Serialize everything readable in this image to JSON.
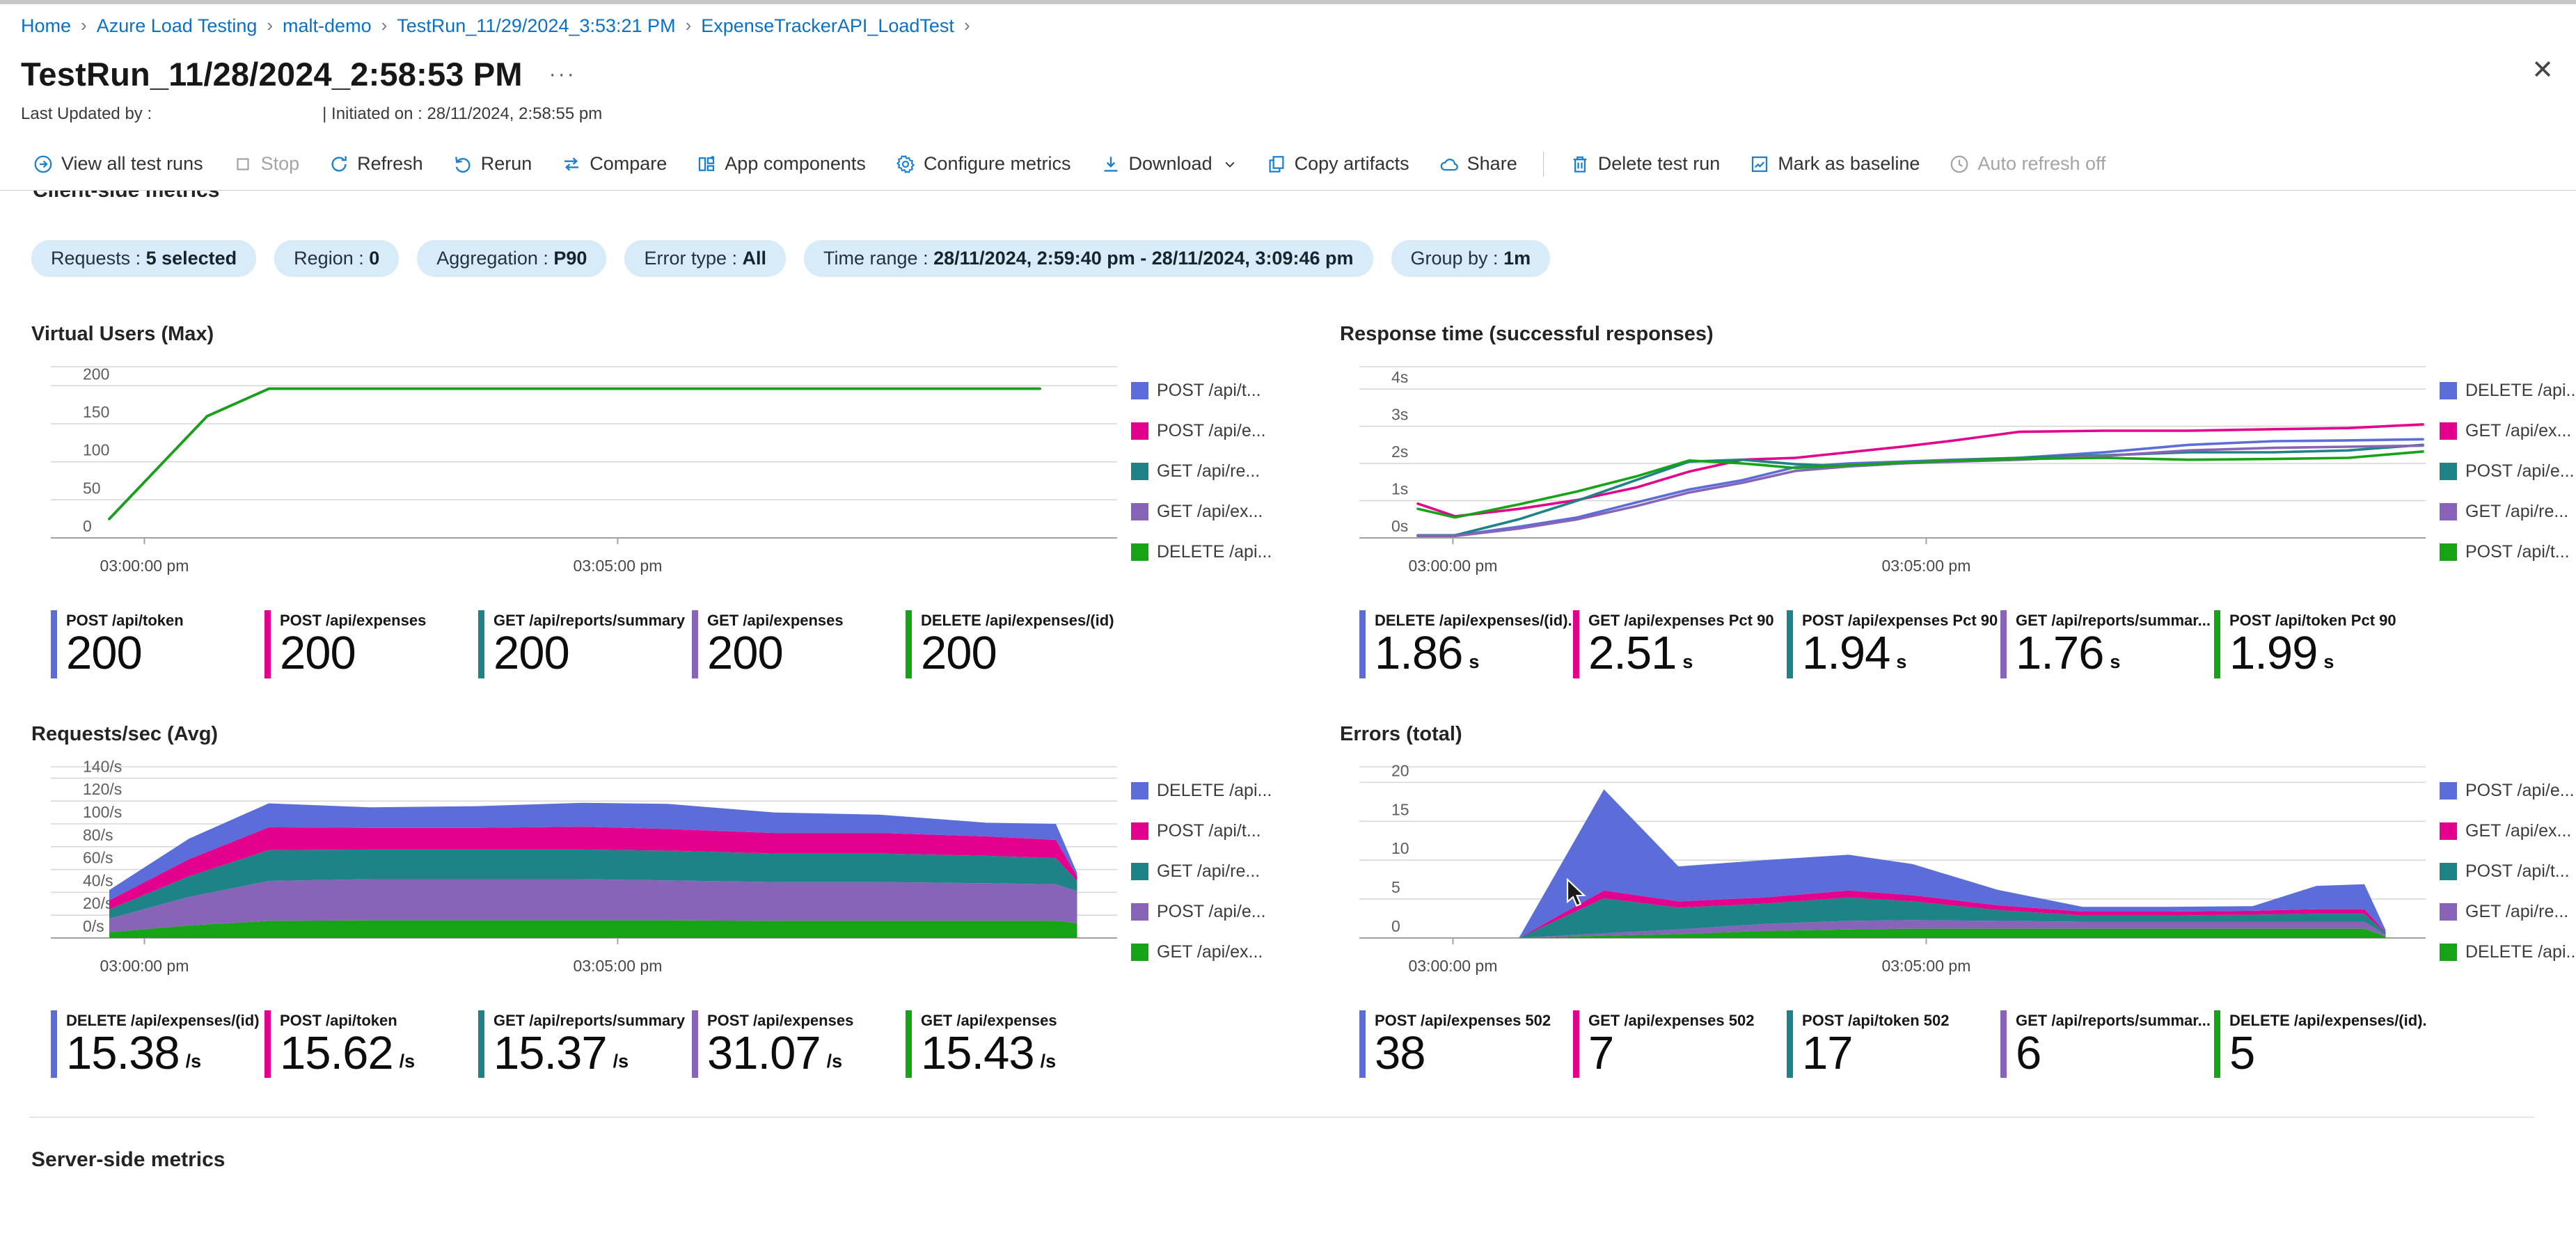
{
  "breadcrumb": {
    "items": [
      "Home",
      "Azure Load Testing",
      "malt-demo",
      "TestRun_11/29/2024_3:53:21 PM",
      "ExpenseTrackerAPI_LoadTest"
    ],
    "separator": "›"
  },
  "header": {
    "title": "TestRun_11/28/2024_2:58:53 PM",
    "more": "···",
    "close": "✕",
    "last_updated": "Last Updated by :",
    "initiated": "| Initiated on : 28/11/2024, 2:58:55 pm"
  },
  "toolbar": {
    "items": [
      {
        "label": "View all test runs"
      },
      {
        "label": "Stop"
      },
      {
        "label": "Refresh"
      },
      {
        "label": "Rerun"
      },
      {
        "label": "Compare"
      },
      {
        "label": "App components"
      },
      {
        "label": "Configure metrics"
      },
      {
        "label": "Download"
      },
      {
        "label": "Copy artifacts"
      },
      {
        "label": "Share"
      },
      {
        "label": "Delete test run"
      },
      {
        "label": "Mark as baseline"
      },
      {
        "label": "Auto refresh off"
      }
    ]
  },
  "sections": {
    "client_heading": "Client-side metrics",
    "server_heading": "Server-side metrics"
  },
  "filters": [
    {
      "label": "Requests",
      "value": "5 selected"
    },
    {
      "label": "Region",
      "value": "0"
    },
    {
      "label": "Aggregation",
      "value": "P90"
    },
    {
      "label": "Error type",
      "value": "All"
    },
    {
      "label": "Time range",
      "value": "28/11/2024, 2:59:40 pm - 28/11/2024, 3:09:46 pm"
    },
    {
      "label": "Group by",
      "value": "1m"
    }
  ],
  "colors": {
    "blue": "#5B6DD9",
    "pink": "#E3008C",
    "teal": "#1E8387",
    "purple": "#8764B8",
    "green": "#16A316",
    "link": "#0B71C6",
    "pill_bg": "#D7EBF9"
  },
  "chart_data": {
    "note": "see charts array",
    "charts_count": 4
  },
  "charts": [
    {
      "title": "Virtual Users (Max)",
      "type": "line",
      "ymax": 225,
      "yticks": [
        {
          "v": 0,
          "label": "0"
        },
        {
          "v": 50,
          "label": "50"
        },
        {
          "v": 100,
          "label": "100"
        },
        {
          "v": 150,
          "label": "150"
        },
        {
          "v": 200,
          "label": "200"
        }
      ],
      "xticks": [
        {
          "f": 0.088,
          "label": "03:00:00 pm"
        },
        {
          "f": 0.533,
          "label": "03:05:00 pm"
        }
      ],
      "series": [
        {
          "name": "POST /api/token",
          "color": "#5B6DD9",
          "points": [
            [
              0.055,
              25
            ],
            [
              0.147,
              160
            ],
            [
              0.205,
              196
            ],
            [
              0.93,
              196
            ]
          ]
        },
        {
          "name": "POST /api/expenses",
          "color": "#E3008C",
          "points": [
            [
              0.055,
              25
            ],
            [
              0.147,
              160
            ],
            [
              0.205,
              196
            ],
            [
              0.93,
              196
            ]
          ]
        },
        {
          "name": "GET /api/reports/summary",
          "color": "#1E8387",
          "points": [
            [
              0.055,
              25
            ],
            [
              0.147,
              160
            ],
            [
              0.205,
              196
            ],
            [
              0.93,
              196
            ]
          ]
        },
        {
          "name": "GET /api/expenses",
          "color": "#8764B8",
          "points": [
            [
              0.055,
              25
            ],
            [
              0.147,
              160
            ],
            [
              0.205,
              196
            ],
            [
              0.93,
              196
            ]
          ]
        },
        {
          "name": "DELETE /api/expenses/(id)",
          "color": "#16A316",
          "points": [
            [
              0.055,
              25
            ],
            [
              0.147,
              160
            ],
            [
              0.205,
              196
            ],
            [
              0.93,
              196
            ]
          ]
        }
      ],
      "legend": [
        {
          "label": "POST /api/t...",
          "color": "#5B6DD9"
        },
        {
          "label": "POST /api/e...",
          "color": "#E3008C"
        },
        {
          "label": "GET /api/re...",
          "color": "#1E8387"
        },
        {
          "label": "GET /api/ex...",
          "color": "#8764B8"
        },
        {
          "label": "DELETE /api...",
          "color": "#16A316"
        }
      ],
      "stats": [
        {
          "label": "POST /api/token",
          "value": "200",
          "unit": "",
          "color": "#5B6DD9"
        },
        {
          "label": "POST /api/expenses",
          "value": "200",
          "unit": "",
          "color": "#E3008C"
        },
        {
          "label": "GET /api/reports/summary",
          "value": "200",
          "unit": "",
          "color": "#1E8387"
        },
        {
          "label": "GET /api/expenses",
          "value": "200",
          "unit": "",
          "color": "#8764B8"
        },
        {
          "label": "DELETE /api/expenses/(id)",
          "value": "200",
          "unit": "",
          "color": "#16A316"
        }
      ]
    },
    {
      "title": "Response time (successful responses)",
      "type": "line",
      "ymax": 4.6,
      "yticks": [
        {
          "v": 0,
          "label": "0s"
        },
        {
          "v": 1,
          "label": "1s"
        },
        {
          "v": 2,
          "label": "2s"
        },
        {
          "v": 3,
          "label": "3s"
        },
        {
          "v": 4,
          "label": "4s"
        }
      ],
      "xticks": [
        {
          "f": 0.088,
          "label": "03:00:00 pm"
        },
        {
          "f": 0.533,
          "label": "03:05:00 pm"
        }
      ],
      "shared_x": [
        0.055,
        0.09,
        0.15,
        0.205,
        0.26,
        0.31,
        0.36,
        0.41,
        0.46,
        0.51,
        0.56,
        0.62,
        0.7,
        0.78,
        0.86,
        0.93,
        1.0
      ],
      "series": [
        {
          "name": "DELETE /api/expenses/(id)",
          "color": "#5B6DD9",
          "values": [
            0.06,
            0.06,
            0.3,
            0.55,
            0.95,
            1.3,
            1.55,
            1.9,
            2.0,
            2.05,
            2.1,
            2.15,
            2.3,
            2.5,
            2.6,
            2.62,
            2.65
          ]
        },
        {
          "name": "GET /api/expenses Pct 90",
          "color": "#E3008C",
          "values": [
            0.92,
            0.58,
            0.78,
            1.02,
            1.35,
            1.78,
            2.1,
            2.15,
            2.3,
            2.45,
            2.62,
            2.85,
            2.88,
            2.88,
            2.92,
            2.95,
            3.05
          ]
        },
        {
          "name": "POST /api/expenses Pct 90",
          "color": "#1E8387",
          "values": [
            0.07,
            0.07,
            0.5,
            1.0,
            1.55,
            2.05,
            2.1,
            1.98,
            1.92,
            2.0,
            2.08,
            2.15,
            2.22,
            2.3,
            2.3,
            2.35,
            2.5
          ]
        },
        {
          "name": "GET /api/reports/summary Pct 90",
          "color": "#8764B8",
          "values": [
            0.05,
            0.05,
            0.25,
            0.5,
            0.85,
            1.22,
            1.48,
            1.8,
            1.92,
            2.0,
            2.05,
            2.1,
            2.2,
            2.35,
            2.42,
            2.45,
            2.48
          ]
        },
        {
          "name": "POST /api/token Pct 90",
          "color": "#16A316",
          "values": [
            0.78,
            0.55,
            0.9,
            1.25,
            1.65,
            2.08,
            2.0,
            1.88,
            1.95,
            2.02,
            2.08,
            2.12,
            2.15,
            2.1,
            2.12,
            2.15,
            2.32
          ]
        }
      ],
      "legend": [
        {
          "label": "DELETE /api...",
          "color": "#5B6DD9"
        },
        {
          "label": "GET /api/ex...",
          "color": "#E3008C"
        },
        {
          "label": "POST /api/e...",
          "color": "#1E8387"
        },
        {
          "label": "GET /api/re...",
          "color": "#8764B8"
        },
        {
          "label": "POST /api/t...",
          "color": "#16A316"
        }
      ],
      "stats": [
        {
          "label": "DELETE /api/expenses/(id)...",
          "value": "1.86",
          "unit": "s",
          "color": "#5B6DD9"
        },
        {
          "label": "GET /api/expenses Pct 90",
          "value": "2.51",
          "unit": "s",
          "color": "#E3008C"
        },
        {
          "label": "POST /api/expenses Pct 90",
          "value": "1.94",
          "unit": "s",
          "color": "#1E8387"
        },
        {
          "label": "GET /api/reports/summar...",
          "value": "1.76",
          "unit": "s",
          "color": "#8764B8"
        },
        {
          "label": "POST /api/token Pct 90",
          "value": "1.99",
          "unit": "s",
          "color": "#16A316"
        }
      ]
    },
    {
      "title": "Requests/sec (Avg)",
      "type": "area",
      "ymax": 150,
      "yticks": [
        {
          "v": 0,
          "label": "0/s"
        },
        {
          "v": 20,
          "label": "20/s"
        },
        {
          "v": 40,
          "label": "40/s"
        },
        {
          "v": 60,
          "label": "60/s"
        },
        {
          "v": 80,
          "label": "80/s"
        },
        {
          "v": 100,
          "label": "100/s"
        },
        {
          "v": 120,
          "label": "120/s"
        },
        {
          "v": 140,
          "label": "140/s"
        }
      ],
      "xticks": [
        {
          "f": 0.088,
          "label": "03:00:00 pm"
        },
        {
          "f": 0.533,
          "label": "03:05:00 pm"
        }
      ],
      "x": [
        0.055,
        0.13,
        0.205,
        0.3,
        0.4,
        0.5,
        0.58,
        0.68,
        0.78,
        0.88,
        0.945,
        0.965
      ],
      "series": [
        {
          "name": "GET /api/expenses",
          "color": "#16A316",
          "values": [
            5,
            11,
            15,
            15.5,
            15.5,
            15.5,
            15.5,
            15,
            15,
            15,
            15,
            13
          ]
        },
        {
          "name": "POST /api/expenses",
          "color": "#8764B8",
          "values": [
            12,
            25,
            35,
            36,
            36,
            36,
            35,
            34,
            34,
            33,
            32,
            28
          ]
        },
        {
          "name": "GET /api/reports/summary",
          "color": "#1E8387",
          "values": [
            8,
            18,
            27,
            26,
            26,
            26,
            26,
            25,
            25,
            24,
            23,
            9
          ]
        },
        {
          "name": "POST /api/token",
          "color": "#E3008C",
          "values": [
            8,
            15,
            20,
            19,
            19,
            20,
            19,
            18,
            18,
            17,
            16,
            4
          ]
        },
        {
          "name": "DELETE /api/expenses/(id)",
          "color": "#5B6DD9",
          "values": [
            9,
            18,
            21,
            18,
            19,
            21,
            22,
            18,
            16,
            12,
            14,
            3
          ]
        }
      ],
      "legend": [
        {
          "label": "DELETE /api...",
          "color": "#5B6DD9"
        },
        {
          "label": "POST /api/t...",
          "color": "#E3008C"
        },
        {
          "label": "GET /api/re...",
          "color": "#1E8387"
        },
        {
          "label": "POST /api/e...",
          "color": "#8764B8"
        },
        {
          "label": "GET /api/ex...",
          "color": "#16A316"
        }
      ],
      "stats": [
        {
          "label": "DELETE /api/expenses/(id)",
          "value": "15.38",
          "unit": "/s",
          "color": "#5B6DD9"
        },
        {
          "label": "POST /api/token",
          "value": "15.62",
          "unit": "/s",
          "color": "#E3008C"
        },
        {
          "label": "GET /api/reports/summary",
          "value": "15.37",
          "unit": "/s",
          "color": "#1E8387"
        },
        {
          "label": "POST /api/expenses",
          "value": "31.07",
          "unit": "/s",
          "color": "#8764B8"
        },
        {
          "label": "GET /api/expenses",
          "value": "15.43",
          "unit": "/s",
          "color": "#16A316"
        }
      ]
    },
    {
      "title": "Errors (total)",
      "type": "area",
      "ymax": 22,
      "yticks": [
        {
          "v": 0,
          "label": "0"
        },
        {
          "v": 5,
          "label": "5"
        },
        {
          "v": 10,
          "label": "10"
        },
        {
          "v": 15,
          "label": "15"
        },
        {
          "v": 20,
          "label": "20"
        }
      ],
      "xticks": [
        {
          "f": 0.088,
          "label": "03:00:00 pm"
        },
        {
          "f": 0.533,
          "label": "03:05:00 pm"
        }
      ],
      "x": [
        0.15,
        0.23,
        0.3,
        0.38,
        0.46,
        0.52,
        0.6,
        0.68,
        0.76,
        0.84,
        0.9,
        0.945,
        0.965
      ],
      "series": [
        {
          "name": "DELETE /api/expenses/(id) 502",
          "color": "#16A316",
          "values": [
            0,
            0.3,
            0.5,
            0.9,
            1.1,
            1.2,
            1.2,
            1.2,
            1.2,
            1.2,
            1.2,
            1.2,
            0.2
          ]
        },
        {
          "name": "GET /api/reports/summary 502",
          "color": "#8764B8",
          "values": [
            0,
            0.3,
            0.6,
            0.9,
            1.1,
            1.1,
            1.0,
            0.9,
            0.9,
            0.9,
            0.9,
            0.9,
            0.2
          ]
        },
        {
          "name": "POST /api/token 502",
          "color": "#1E8387",
          "values": [
            0,
            4.5,
            2.8,
            2.6,
            3.0,
            2.4,
            1.4,
            0.8,
            0.8,
            0.9,
            1.0,
            1.0,
            0.2
          ]
        },
        {
          "name": "GET /api/expenses 502",
          "color": "#E3008C",
          "values": [
            0,
            1.0,
            0.8,
            0.8,
            0.9,
            0.8,
            0.6,
            0.5,
            0.5,
            0.5,
            0.6,
            0.6,
            0.1
          ]
        },
        {
          "name": "POST /api/expenses 502",
          "color": "#5B6DD9",
          "values": [
            0,
            13.0,
            4.5,
            4.8,
            4.6,
            4.0,
            2.0,
            0.6,
            0.6,
            0.6,
            3.0,
            3.2,
            0.3
          ]
        }
      ],
      "legend": [
        {
          "label": "POST /api/e...",
          "color": "#5B6DD9"
        },
        {
          "label": "GET /api/ex...",
          "color": "#E3008C"
        },
        {
          "label": "POST /api/t...",
          "color": "#1E8387"
        },
        {
          "label": "GET /api/re...",
          "color": "#8764B8"
        },
        {
          "label": "DELETE /api...",
          "color": "#16A316"
        }
      ],
      "stats": [
        {
          "label": "POST /api/expenses 502",
          "value": "38",
          "unit": "",
          "color": "#5B6DD9"
        },
        {
          "label": "GET /api/expenses 502",
          "value": "7",
          "unit": "",
          "color": "#E3008C"
        },
        {
          "label": "POST /api/token 502",
          "value": "17",
          "unit": "",
          "color": "#1E8387"
        },
        {
          "label": "GET /api/reports/summar...",
          "value": "6",
          "unit": "",
          "color": "#8764B8"
        },
        {
          "label": "DELETE /api/expenses/(id)...",
          "value": "5",
          "unit": "",
          "color": "#16A316"
        }
      ]
    }
  ]
}
